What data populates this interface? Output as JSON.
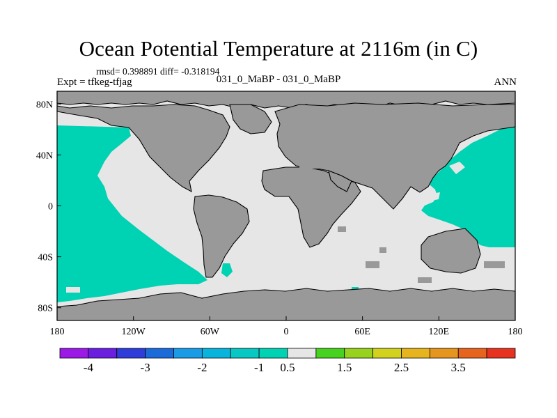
{
  "title": "Ocean Potential Temperature at 2116m (in C)",
  "stats_line": "rmsd= 0.398891 diff= -0.318194",
  "expt_line": "Expt = tfkeg-tfjag",
  "subtitle": "031_0_MaBP - 031_0_MaBP",
  "season": "ANN",
  "map": {
    "lon_range": [
      -180,
      180
    ],
    "lat_range": [
      -90,
      90
    ],
    "lon_ticks": [
      {
        "value": -180,
        "label": "180"
      },
      {
        "value": -120,
        "label": "120W"
      },
      {
        "value": -60,
        "label": "60W"
      },
      {
        "value": 0,
        "label": "0"
      },
      {
        "value": 60,
        "label": "60E"
      },
      {
        "value": 120,
        "label": "120E"
      },
      {
        "value": 180,
        "label": "180"
      }
    ],
    "lat_ticks": [
      {
        "value": 80,
        "label": "80N"
      },
      {
        "value": 40,
        "label": "40N"
      },
      {
        "value": 0,
        "label": "0"
      },
      {
        "value": -40,
        "label": "40S"
      },
      {
        "value": -80,
        "label": "80S"
      }
    ],
    "colors": {
      "land": "#999999",
      "near_zero": "#e6e6e6",
      "cool": "#00d2b4",
      "coast": "#000000"
    }
  },
  "colorbar": {
    "colors": [
      "#9b1ae6",
      "#6a1ee0",
      "#2e3dd9",
      "#1a6ad9",
      "#1a9be6",
      "#08b4dc",
      "#08c8c3",
      "#00d2b4",
      "#e6e6e6",
      "#46d21e",
      "#96d21e",
      "#d2d21e",
      "#e6b41e",
      "#e6961e",
      "#e6641e",
      "#e6321e"
    ],
    "labels": [
      {
        "index": 1,
        "text": "-4"
      },
      {
        "index": 3,
        "text": "-3"
      },
      {
        "index": 5,
        "text": "-2"
      },
      {
        "index": 7,
        "text": "-1"
      },
      {
        "index": 8,
        "text": "0.5"
      },
      {
        "index": 10,
        "text": "1.5"
      },
      {
        "index": 12,
        "text": "2.5"
      },
      {
        "index": 14,
        "text": "3.5"
      }
    ]
  }
}
